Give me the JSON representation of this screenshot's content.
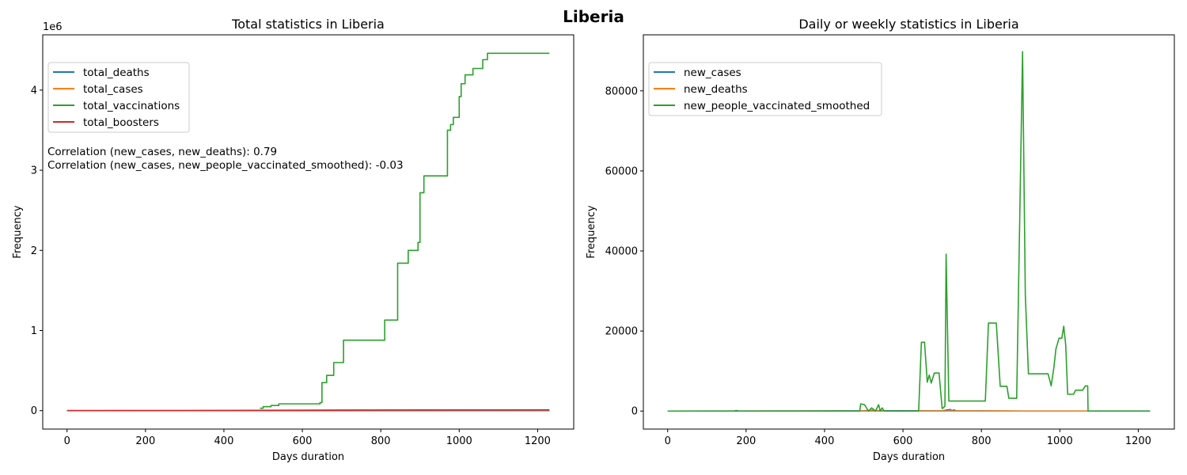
{
  "figure": {
    "suptitle": "Liberia"
  },
  "chart_data": [
    {
      "type": "line",
      "title": "Total statistics in Liberia",
      "xlabel": "Days duration",
      "ylabel": "Frequency",
      "y_offset_label": "1e6",
      "y_scale": 1000000,
      "xlim": [
        -62,
        1292
      ],
      "ylim": [
        -230000,
        4690000
      ],
      "xticks": [
        0,
        200,
        400,
        600,
        800,
        1000,
        1200
      ],
      "yticks": [
        0,
        1000000,
        2000000,
        3000000,
        4000000
      ],
      "ytick_labels": [
        "0",
        "1",
        "2",
        "3",
        "4"
      ],
      "legend_loc": "upper-left",
      "annotations": [
        "Correlation (new_cases, new_deaths): 0.79",
        "Correlation (new_cases, new_people_vaccinated_smoothed): -0.03"
      ],
      "series": [
        {
          "name": "total_deaths",
          "color": "#1f77b4",
          "x": [
            0,
            1230
          ],
          "y": [
            0,
            300
          ]
        },
        {
          "name": "total_cases",
          "color": "#ff7f0e",
          "x": [
            0,
            100,
            300,
            500,
            700,
            900,
            1230
          ],
          "y": [
            0,
            1200,
            2500,
            5000,
            7500,
            8000,
            8100
          ]
        },
        {
          "name": "total_vaccinations",
          "color": "#2ca02c",
          "x": [
            492,
            492,
            500,
            500,
            520,
            520,
            540,
            540,
            645,
            645,
            650,
            650,
            662,
            662,
            680,
            680,
            705,
            705,
            810,
            810,
            843,
            843,
            870,
            870,
            895,
            895,
            900,
            900,
            910,
            910,
            970,
            970,
            978,
            978,
            985,
            985,
            1000,
            1000,
            1005,
            1005,
            1015,
            1015,
            1035,
            1035,
            1060,
            1060,
            1072,
            1072,
            1230
          ],
          "y": [
            30000,
            30000,
            30000,
            50000,
            50000,
            65000,
            65000,
            85000,
            85000,
            100000,
            100000,
            350000,
            350000,
            440000,
            440000,
            600000,
            600000,
            880000,
            880000,
            1130000,
            1130000,
            1840000,
            1840000,
            2000000,
            2000000,
            2100000,
            2100000,
            2720000,
            2720000,
            2930000,
            2930000,
            3500000,
            3500000,
            3570000,
            3570000,
            3660000,
            3660000,
            3920000,
            3920000,
            4080000,
            4080000,
            4190000,
            4190000,
            4270000,
            4270000,
            4380000,
            4380000,
            4460000,
            4460000
          ]
        },
        {
          "name": "total_boosters",
          "color": "#d62728",
          "x": [
            0,
            300,
            500,
            700,
            900,
            1230
          ],
          "y": [
            0,
            1000,
            3000,
            6000,
            9000,
            10000
          ]
        }
      ]
    },
    {
      "type": "line",
      "title": "Daily or weekly statistics in Liberia",
      "xlabel": "Days duration",
      "ylabel": "Frequency",
      "xlim": [
        -62,
        1292
      ],
      "ylim": [
        -4500,
        94000
      ],
      "xticks": [
        0,
        200,
        400,
        600,
        800,
        1000,
        1200
      ],
      "yticks": [
        0,
        20000,
        40000,
        60000,
        80000
      ],
      "ytick_labels": [
        "0",
        "20000",
        "40000",
        "60000",
        "80000"
      ],
      "legend_loc": "upper-left",
      "series": [
        {
          "name": "new_cases",
          "color": "#1f77b4",
          "x": [
            0,
            100,
            170,
            175,
            180,
            300,
            500,
            520,
            540,
            700,
            720,
            725,
            730,
            735,
            900,
            1230
          ],
          "y": [
            0,
            10,
            20,
            150,
            20,
            30,
            80,
            200,
            100,
            60,
            400,
            100,
            300,
            80,
            20,
            5
          ]
        },
        {
          "name": "new_deaths",
          "color": "#ff7f0e",
          "x": [
            0,
            300,
            600,
            900,
            1230
          ],
          "y": [
            0,
            3,
            5,
            2,
            0
          ]
        },
        {
          "name": "new_people_vaccinated_smoothed",
          "color": "#2ca02c",
          "x": [
            0,
            490,
            492,
            502,
            512,
            520,
            530,
            538,
            542,
            547,
            552,
            640,
            647,
            655,
            662,
            667,
            672,
            680,
            692,
            700,
            707,
            710,
            717,
            730,
            810,
            818,
            838,
            848,
            865,
            870,
            890,
            905,
            912,
            920,
            970,
            978,
            985,
            990,
            998,
            1005,
            1010,
            1015,
            1020,
            1035,
            1040,
            1058,
            1065,
            1071,
            1072,
            1230
          ],
          "y": [
            0,
            0,
            1800,
            1600,
            0,
            800,
            0,
            1600,
            0,
            800,
            0,
            0,
            17200,
            17200,
            7200,
            9000,
            7000,
            9500,
            9500,
            600,
            1200,
            39200,
            2500,
            2500,
            2500,
            22000,
            22000,
            6200,
            6200,
            3200,
            3200,
            89800,
            29000,
            9300,
            9300,
            6300,
            11000,
            15500,
            18200,
            18200,
            21200,
            16500,
            4200,
            4200,
            5200,
            5200,
            6300,
            6300,
            0,
            0
          ]
        }
      ]
    }
  ]
}
